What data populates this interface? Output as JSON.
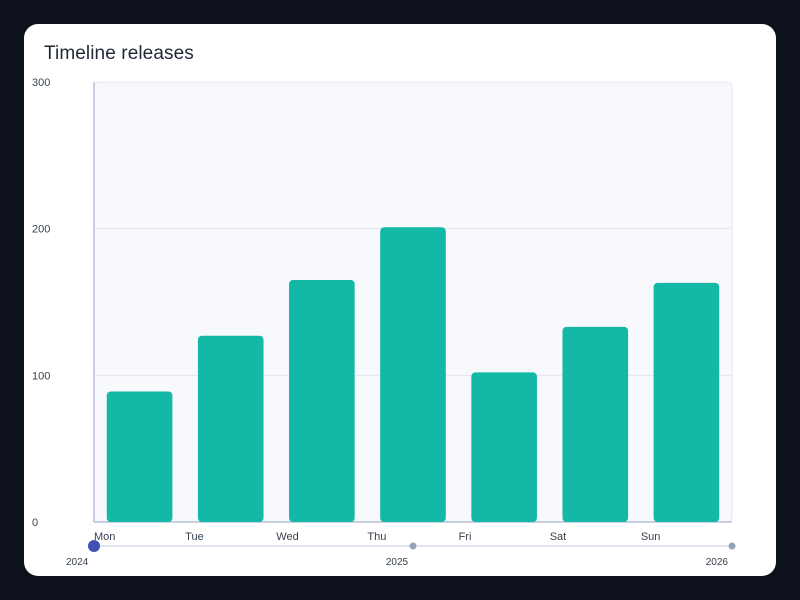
{
  "chart_data": {
    "type": "bar",
    "title": "Timeline releases",
    "categories": [
      "Mon",
      "Tue",
      "Wed",
      "Thu",
      "Fri",
      "Sat",
      "Sun"
    ],
    "values": [
      89,
      127,
      165,
      201,
      102,
      133,
      163
    ],
    "xlabel": "",
    "ylabel": "",
    "ylim": [
      0,
      300
    ],
    "yticks": [
      0,
      100,
      200,
      300
    ],
    "grid": true,
    "bar_color": "#14b8a6"
  },
  "timeline": {
    "labels": [
      "2024",
      "2025",
      "2026"
    ],
    "selected_index": 0,
    "accent_color": "#3f51b5",
    "dot_color": "#94a3b8"
  }
}
